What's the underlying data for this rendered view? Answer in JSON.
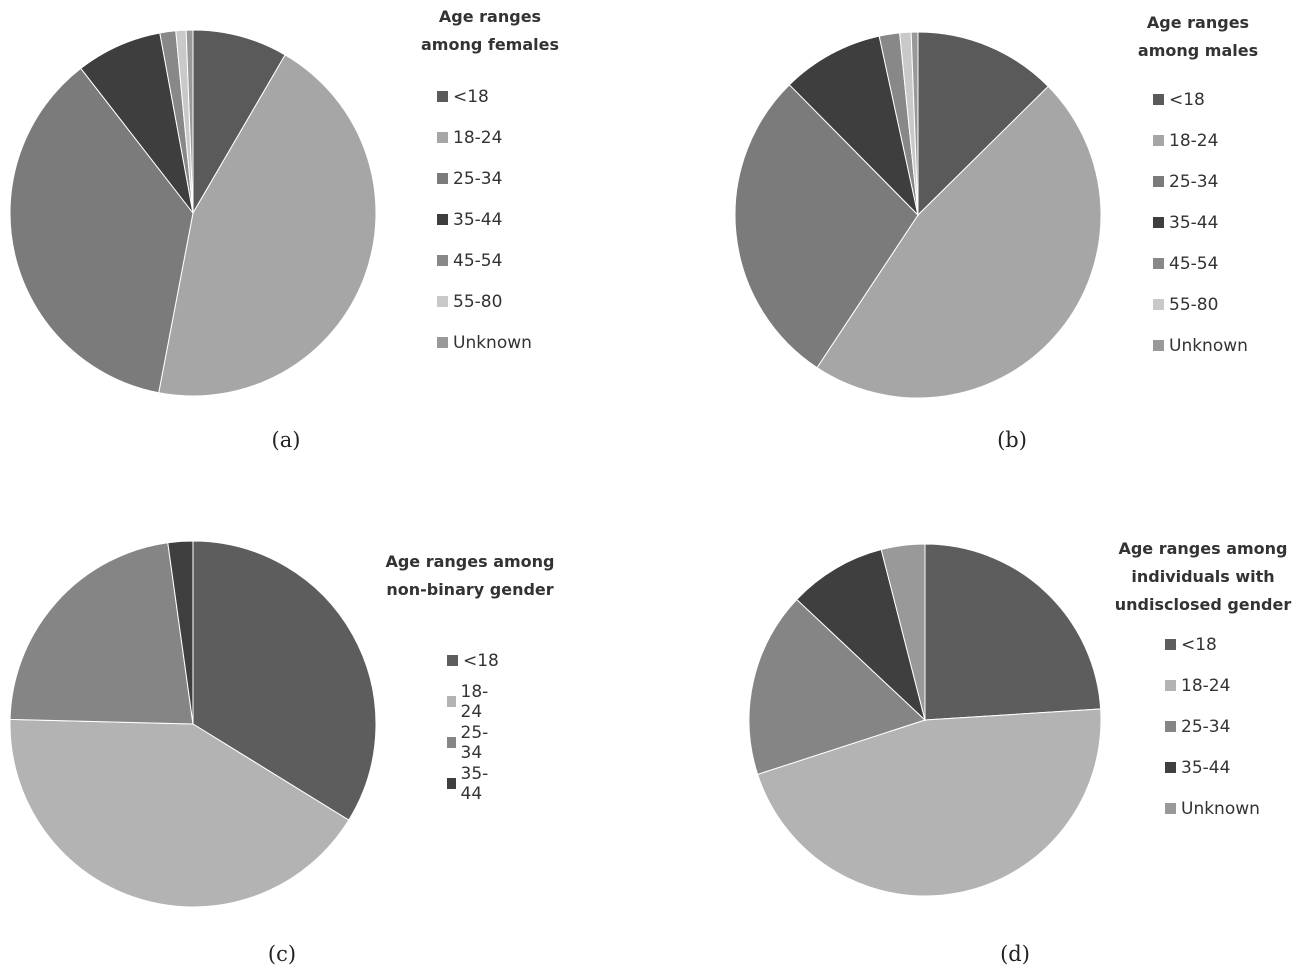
{
  "chart_data": [
    {
      "type": "pie",
      "title": "Age ranges\namong females",
      "caption": "(a)",
      "categories": [
        "<18",
        "18-24",
        "25-34",
        "35-44",
        "45-54",
        "55-80",
        "Unknown"
      ],
      "values": [
        8.4,
        44.6,
        36.5,
        7.6,
        1.4,
        0.9,
        0.6
      ],
      "colors": [
        "#5a5a5a",
        "#a6a6a6",
        "#7b7b7b",
        "#3e3e3e",
        "#888888",
        "#c9c9c9",
        "#999999"
      ]
    },
    {
      "type": "pie",
      "title": "Age ranges\namong males",
      "caption": "(b)",
      "categories": [
        "<18",
        "18-24",
        "25-34",
        "35-44",
        "45-54",
        "55-80",
        "Unknown"
      ],
      "values": [
        12.6,
        46.7,
        28.3,
        9.0,
        1.8,
        1.0,
        0.6
      ],
      "colors": [
        "#5a5a5a",
        "#a6a6a6",
        "#7b7b7b",
        "#3e3e3e",
        "#888888",
        "#c9c9c9",
        "#999999"
      ]
    },
    {
      "type": "pie",
      "title": "Age ranges among\nnon-binary gender",
      "caption": "(c)",
      "categories": [
        "<18",
        "18-24",
        "25-34",
        "35-44"
      ],
      "values": [
        33.8,
        41.6,
        22.4,
        2.2
      ],
      "colors": [
        "#5d5d5d",
        "#b3b3b3",
        "#858585",
        "#3f3f3f"
      ]
    },
    {
      "type": "pie",
      "title": "Age ranges among\nindividuals with\nundisclosed gender",
      "caption": "(d)",
      "categories": [
        "<18",
        "18-24",
        "25-34",
        "35-44",
        "Unknown"
      ],
      "values": [
        24.0,
        46.0,
        17.0,
        9.0,
        4.0
      ],
      "colors": [
        "#5d5d5d",
        "#b3b3b3",
        "#858585",
        "#3f3f3f",
        "#999999"
      ]
    }
  ]
}
